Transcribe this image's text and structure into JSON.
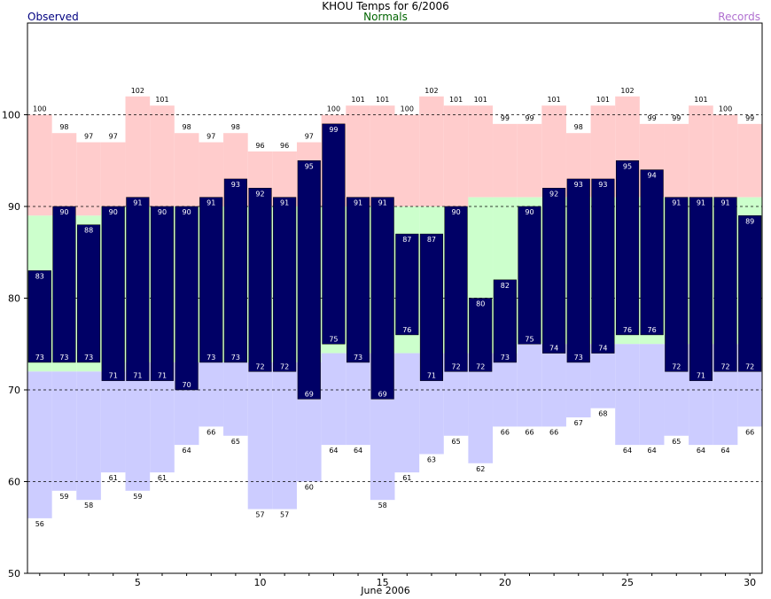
{
  "title": "KHOU Temps for 6/2006",
  "legend": {
    "observed": "Observed",
    "normals": "Normals",
    "records": "Records"
  },
  "colors": {
    "observed": "#000066",
    "normal_band": "#ccffcc",
    "record_high_band": "#ffcccc",
    "record_low_band": "#ccccff",
    "observed_label": "#ffffff",
    "record_label": "#000000",
    "gridline": "#000000"
  },
  "chart_data": {
    "type": "bar",
    "xlabel": "June 2006",
    "ylabel": "",
    "xlim": [
      0.5,
      30.5
    ],
    "ylim": [
      50,
      110
    ],
    "x_ticks": [
      5,
      10,
      15,
      20,
      25,
      30
    ],
    "y_ticks": [
      50,
      60,
      70,
      80,
      90,
      100
    ],
    "grid_lines_y": [
      60,
      70,
      80,
      90,
      100
    ],
    "days": [
      1,
      2,
      3,
      4,
      5,
      6,
      7,
      8,
      9,
      10,
      11,
      12,
      13,
      14,
      15,
      16,
      17,
      18,
      19,
      20,
      21,
      22,
      23,
      24,
      25,
      26,
      27,
      28,
      29,
      30
    ],
    "series": [
      {
        "name": "Observed",
        "kind": "high",
        "values": [
          83,
          90,
          88,
          90,
          91,
          90,
          90,
          91,
          93,
          92,
          91,
          95,
          99,
          91,
          91,
          87,
          87,
          90,
          80,
          82,
          90,
          92,
          93,
          93,
          95,
          94,
          91,
          91,
          91,
          89
        ]
      },
      {
        "name": "Observed",
        "kind": "low",
        "values": [
          73,
          73,
          73,
          71,
          71,
          71,
          70,
          73,
          73,
          72,
          72,
          69,
          75,
          73,
          69,
          76,
          71,
          72,
          72,
          73,
          75,
          74,
          73,
          74,
          76,
          76,
          72,
          71,
          72,
          72
        ]
      },
      {
        "name": "Normals",
        "kind": "high",
        "values": [
          89,
          89,
          89,
          90,
          90,
          90,
          90,
          90,
          90,
          90,
          90,
          90,
          90,
          90,
          90,
          90,
          90,
          90,
          91,
          91,
          91,
          91,
          91,
          91,
          91,
          91,
          91,
          91,
          91,
          91
        ]
      },
      {
        "name": "Normals",
        "kind": "low",
        "values": [
          72,
          72,
          72,
          72,
          73,
          73,
          73,
          73,
          73,
          73,
          73,
          73,
          74,
          74,
          74,
          74,
          74,
          74,
          74,
          74,
          75,
          75,
          75,
          75,
          75,
          75,
          75,
          75,
          75,
          75
        ]
      },
      {
        "name": "Records",
        "kind": "high",
        "values": [
          100,
          98,
          97,
          97,
          102,
          101,
          98,
          97,
          98,
          96,
          96,
          97,
          100,
          101,
          101,
          100,
          102,
          101,
          101,
          99,
          99,
          101,
          98,
          101,
          102,
          99,
          99,
          101,
          100,
          99
        ]
      },
      {
        "name": "Records",
        "kind": "low",
        "values": [
          56,
          59,
          58,
          61,
          59,
          61,
          64,
          66,
          65,
          57,
          57,
          60,
          64,
          64,
          58,
          61,
          63,
          65,
          62,
          66,
          66,
          66,
          67,
          68,
          64,
          64,
          65,
          64,
          64,
          66
        ]
      }
    ]
  }
}
